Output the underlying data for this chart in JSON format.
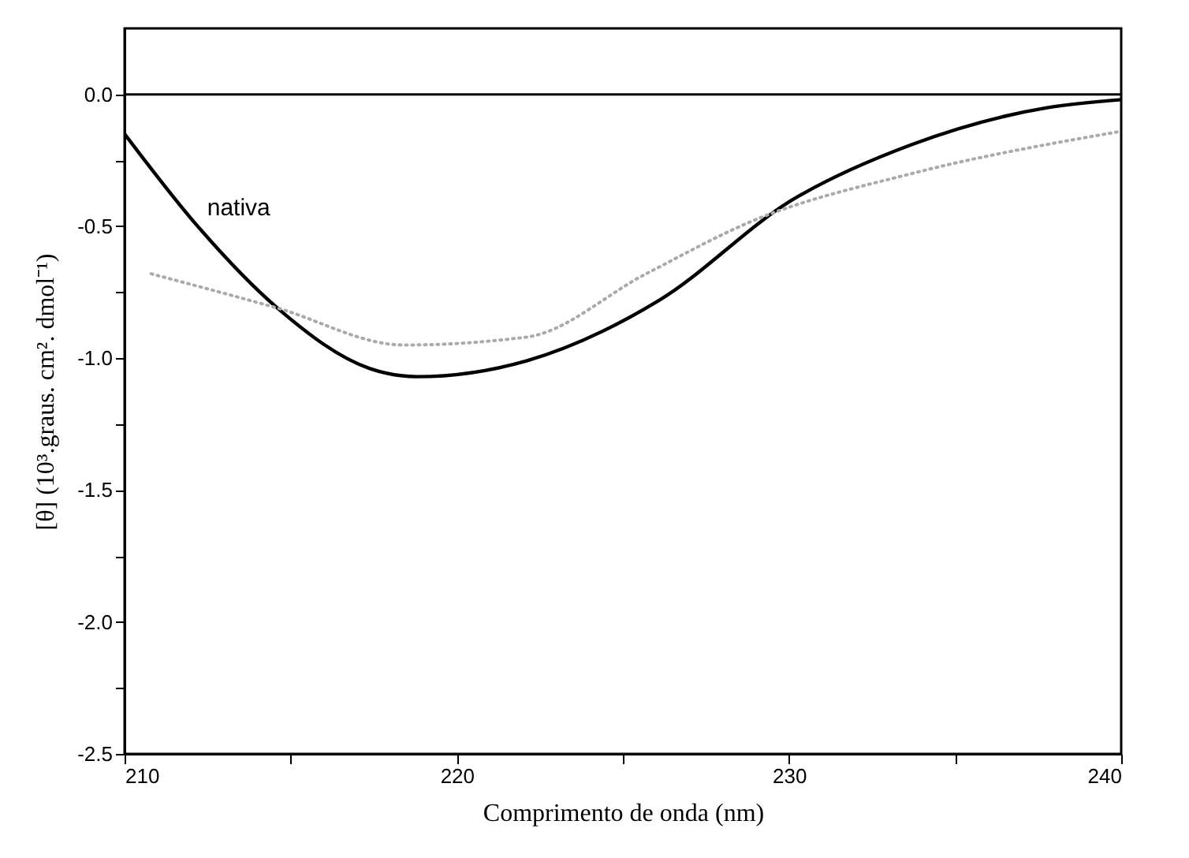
{
  "chart_data": {
    "type": "line",
    "xlabel": "Comprimento de onda (nm)",
    "ylabel": "[θ] (10³.graus. cm². dmol⁻¹)",
    "xlim": [
      210,
      240
    ],
    "ylim": [
      -2.5,
      0.25
    ],
    "xticks": [
      210,
      {
        "value": 215,
        "label": null
      },
      220,
      {
        "value": 225,
        "label": null
      },
      230,
      {
        "value": 235,
        "label": null
      },
      240
    ],
    "yticks": [
      {
        "value": -2.5,
        "label": "-2.5"
      },
      {
        "value": -2.25,
        "label": null
      },
      {
        "value": -2,
        "label": "-2.0"
      },
      {
        "value": -1.75,
        "label": null
      },
      {
        "value": -1.5,
        "label": "-1.5"
      },
      {
        "value": -1.25,
        "label": null
      },
      {
        "value": -1,
        "label": "-1.0"
      },
      {
        "value": -0.75,
        "label": null
      },
      {
        "value": -0.5,
        "label": "-0.5"
      },
      {
        "value": -0.25,
        "label": null
      },
      {
        "value": 0,
        "label": "0.0"
      }
    ],
    "grid": false,
    "ref_lines": [
      {
        "axis": "y",
        "value": 0,
        "color": "#000000"
      }
    ],
    "series": [
      {
        "name": "nativa",
        "color": "#000000",
        "line_style": "solid",
        "x": [
          210,
          212.2,
          214.6,
          217.4,
          218.8,
          222.1,
          226.1,
          230.1,
          233.7,
          237.8,
          240
        ],
        "values": [
          -0.15,
          -0.5,
          -0.81,
          -1.04,
          -1.07,
          -1.01,
          -0.78,
          -0.4,
          -0.19,
          -0.05,
          -0.02
        ]
      },
      {
        "color": "#aaaaaa",
        "line_style": "dotted",
        "x": [
          210.8,
          214.6,
          218.4,
          222.1,
          225.7,
          228.9,
          233.7,
          240
        ],
        "values": [
          -0.68,
          -0.81,
          -0.95,
          -0.92,
          -0.68,
          -0.48,
          -0.3,
          -0.14
        ]
      }
    ]
  }
}
